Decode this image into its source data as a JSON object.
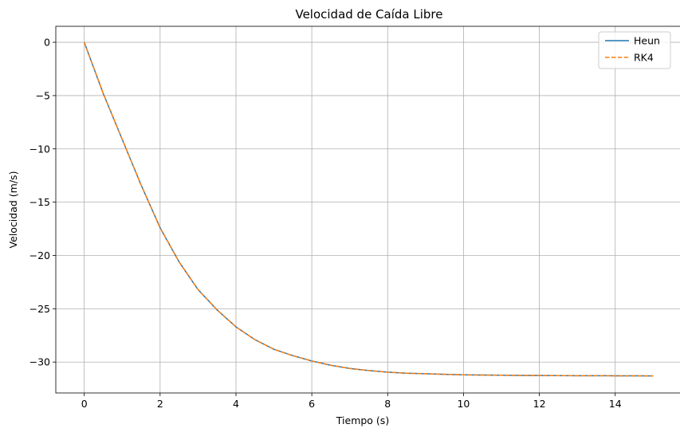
{
  "chart_data": {
    "type": "line",
    "title": "Velocidad de Caída Libre",
    "xlabel": "Tiempo (s)",
    "ylabel": "Velocidad (m/s)",
    "xlim": [
      -0.75,
      15.75
    ],
    "ylim": [
      -32.9,
      1.5
    ],
    "xticks": [
      0,
      2,
      4,
      6,
      8,
      10,
      12,
      14
    ],
    "yticks": [
      0,
      -5,
      -10,
      -15,
      -20,
      -25,
      -30
    ],
    "xtick_labels": [
      "0",
      "2",
      "4",
      "6",
      "8",
      "10",
      "12",
      "14"
    ],
    "ytick_labels": [
      "0",
      "−5",
      "−10",
      "−15",
      "−20",
      "−25",
      "−30"
    ],
    "grid": true,
    "legend_position": "top-right",
    "x": [
      0,
      0.5,
      1,
      1.5,
      2,
      2.5,
      3,
      3.5,
      4,
      4.5,
      5,
      5.5,
      6,
      6.5,
      7,
      7.5,
      8,
      8.5,
      9,
      9.5,
      10,
      10.5,
      11,
      11.5,
      12,
      12.5,
      13,
      13.5,
      14,
      14.5,
      15
    ],
    "series": [
      {
        "name": "Heun",
        "color": "#1f77b4",
        "style": "solid",
        "values": [
          0,
          -4.8,
          -9.1,
          -13.4,
          -17.4,
          -20.6,
          -23.2,
          -25.1,
          -26.7,
          -27.9,
          -28.8,
          -29.4,
          -29.9,
          -30.3,
          -30.6,
          -30.8,
          -30.95,
          -31.05,
          -31.1,
          -31.15,
          -31.2,
          -31.22,
          -31.24,
          -31.25,
          -31.26,
          -31.27,
          -31.28,
          -31.28,
          -31.29,
          -31.29,
          -31.3
        ]
      },
      {
        "name": "RK4",
        "color": "#ff7f0e",
        "style": "dashed",
        "values": [
          0,
          -4.8,
          -9.1,
          -13.4,
          -17.4,
          -20.6,
          -23.2,
          -25.1,
          -26.7,
          -27.9,
          -28.8,
          -29.4,
          -29.9,
          -30.3,
          -30.6,
          -30.8,
          -30.95,
          -31.05,
          -31.1,
          -31.15,
          -31.2,
          -31.22,
          -31.24,
          -31.25,
          -31.26,
          -31.27,
          -31.28,
          -31.28,
          -31.29,
          -31.29,
          -31.3
        ]
      }
    ]
  }
}
